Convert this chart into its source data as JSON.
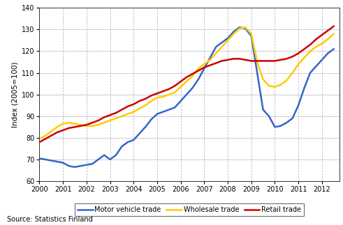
{
  "title": "",
  "ylabel": "Index (2005=100)",
  "xlabel": "",
  "ylim": [
    60,
    140
  ],
  "xlim": [
    2000,
    2012.75
  ],
  "yticks": [
    60,
    70,
    80,
    90,
    100,
    110,
    120,
    130,
    140
  ],
  "xtick_labels": [
    "2000",
    "2001",
    "2002",
    "2003",
    "2004",
    "2005",
    "2006",
    "2007",
    "2008",
    "2009",
    "2010",
    "2011",
    "2012"
  ],
  "xtick_positions": [
    2000,
    2001,
    2002,
    2003,
    2004,
    2005,
    2006,
    2007,
    2008,
    2009,
    2010,
    2011,
    2012
  ],
  "source_text": "Source: Statistics Finland",
  "legend": [
    "Motor vehicle trade",
    "Wholesale trade",
    "Retail trade"
  ],
  "colors": [
    "#3366cc",
    "#ffcc00",
    "#cc0000"
  ],
  "linewidth": 1.8,
  "motor_vehicle": {
    "x": [
      2000.0,
      2000.25,
      2000.5,
      2000.75,
      2001.0,
      2001.25,
      2001.5,
      2001.75,
      2002.0,
      2002.25,
      2002.5,
      2002.75,
      2003.0,
      2003.25,
      2003.5,
      2003.75,
      2004.0,
      2004.25,
      2004.5,
      2004.75,
      2005.0,
      2005.25,
      2005.5,
      2005.75,
      2006.0,
      2006.25,
      2006.5,
      2006.75,
      2007.0,
      2007.25,
      2007.5,
      2007.75,
      2008.0,
      2008.25,
      2008.5,
      2008.75,
      2009.0,
      2009.25,
      2009.5,
      2009.75,
      2010.0,
      2010.25,
      2010.5,
      2010.75,
      2011.0,
      2011.25,
      2011.5,
      2011.75,
      2012.0,
      2012.25,
      2012.5
    ],
    "y": [
      70.5,
      70.0,
      69.5,
      69.0,
      68.5,
      67.0,
      66.5,
      67.0,
      67.5,
      68.0,
      70.0,
      72.0,
      70.0,
      72.0,
      76.0,
      78.0,
      79.0,
      82.0,
      85.0,
      88.5,
      91.0,
      92.0,
      93.0,
      94.0,
      97.0,
      100.0,
      103.0,
      107.0,
      112.0,
      117.0,
      122.0,
      124.0,
      126.0,
      129.0,
      131.0,
      130.5,
      127.0,
      110.0,
      93.0,
      90.0,
      85.0,
      85.5,
      87.0,
      89.0,
      95.0,
      103.0,
      110.0,
      113.0,
      116.0,
      119.0,
      121.0
    ]
  },
  "wholesale": {
    "x": [
      2000.0,
      2000.25,
      2000.5,
      2000.75,
      2001.0,
      2001.25,
      2001.5,
      2001.75,
      2002.0,
      2002.25,
      2002.5,
      2002.75,
      2003.0,
      2003.25,
      2003.5,
      2003.75,
      2004.0,
      2004.25,
      2004.5,
      2004.75,
      2005.0,
      2005.25,
      2005.5,
      2005.75,
      2006.0,
      2006.25,
      2006.5,
      2006.75,
      2007.0,
      2007.25,
      2007.5,
      2007.75,
      2008.0,
      2008.25,
      2008.5,
      2008.75,
      2009.0,
      2009.25,
      2009.5,
      2009.75,
      2010.0,
      2010.25,
      2010.5,
      2010.75,
      2011.0,
      2011.25,
      2011.5,
      2011.75,
      2012.0,
      2012.25,
      2012.5
    ],
    "y": [
      79.5,
      81.0,
      83.0,
      85.0,
      86.5,
      87.0,
      86.5,
      86.0,
      85.5,
      85.5,
      86.0,
      87.0,
      88.0,
      89.0,
      90.0,
      91.0,
      92.0,
      93.5,
      95.0,
      97.0,
      98.5,
      99.0,
      100.0,
      101.0,
      103.5,
      106.0,
      108.5,
      112.0,
      114.0,
      116.0,
      119.0,
      122.0,
      125.0,
      128.0,
      130.5,
      131.0,
      128.0,
      115.0,
      107.0,
      104.0,
      103.5,
      104.5,
      106.5,
      110.0,
      114.0,
      117.0,
      120.0,
      122.0,
      123.5,
      125.5,
      128.0
    ]
  },
  "retail": {
    "x": [
      2000.0,
      2000.25,
      2000.5,
      2000.75,
      2001.0,
      2001.25,
      2001.5,
      2001.75,
      2002.0,
      2002.25,
      2002.5,
      2002.75,
      2003.0,
      2003.25,
      2003.5,
      2003.75,
      2004.0,
      2004.25,
      2004.5,
      2004.75,
      2005.0,
      2005.25,
      2005.5,
      2005.75,
      2006.0,
      2006.25,
      2006.5,
      2006.75,
      2007.0,
      2007.25,
      2007.5,
      2007.75,
      2008.0,
      2008.25,
      2008.5,
      2008.75,
      2009.0,
      2009.25,
      2009.5,
      2009.75,
      2010.0,
      2010.25,
      2010.5,
      2010.75,
      2011.0,
      2011.25,
      2011.5,
      2011.75,
      2012.0,
      2012.25,
      2012.5
    ],
    "y": [
      78.0,
      79.5,
      81.0,
      82.5,
      83.5,
      84.5,
      85.0,
      85.5,
      86.0,
      87.0,
      88.0,
      89.5,
      90.5,
      91.5,
      93.0,
      94.5,
      95.5,
      97.0,
      98.0,
      99.5,
      100.5,
      101.5,
      102.5,
      104.0,
      106.0,
      108.0,
      109.5,
      111.0,
      112.5,
      113.5,
      114.5,
      115.5,
      116.0,
      116.5,
      116.5,
      116.0,
      115.5,
      115.5,
      115.5,
      115.5,
      115.5,
      116.0,
      116.5,
      117.5,
      119.0,
      121.0,
      123.0,
      125.5,
      127.5,
      129.5,
      131.5
    ]
  },
  "grid_color": "#bbbbbb",
  "bg_color": "#ffffff",
  "fig_bg_color": "#ffffff"
}
